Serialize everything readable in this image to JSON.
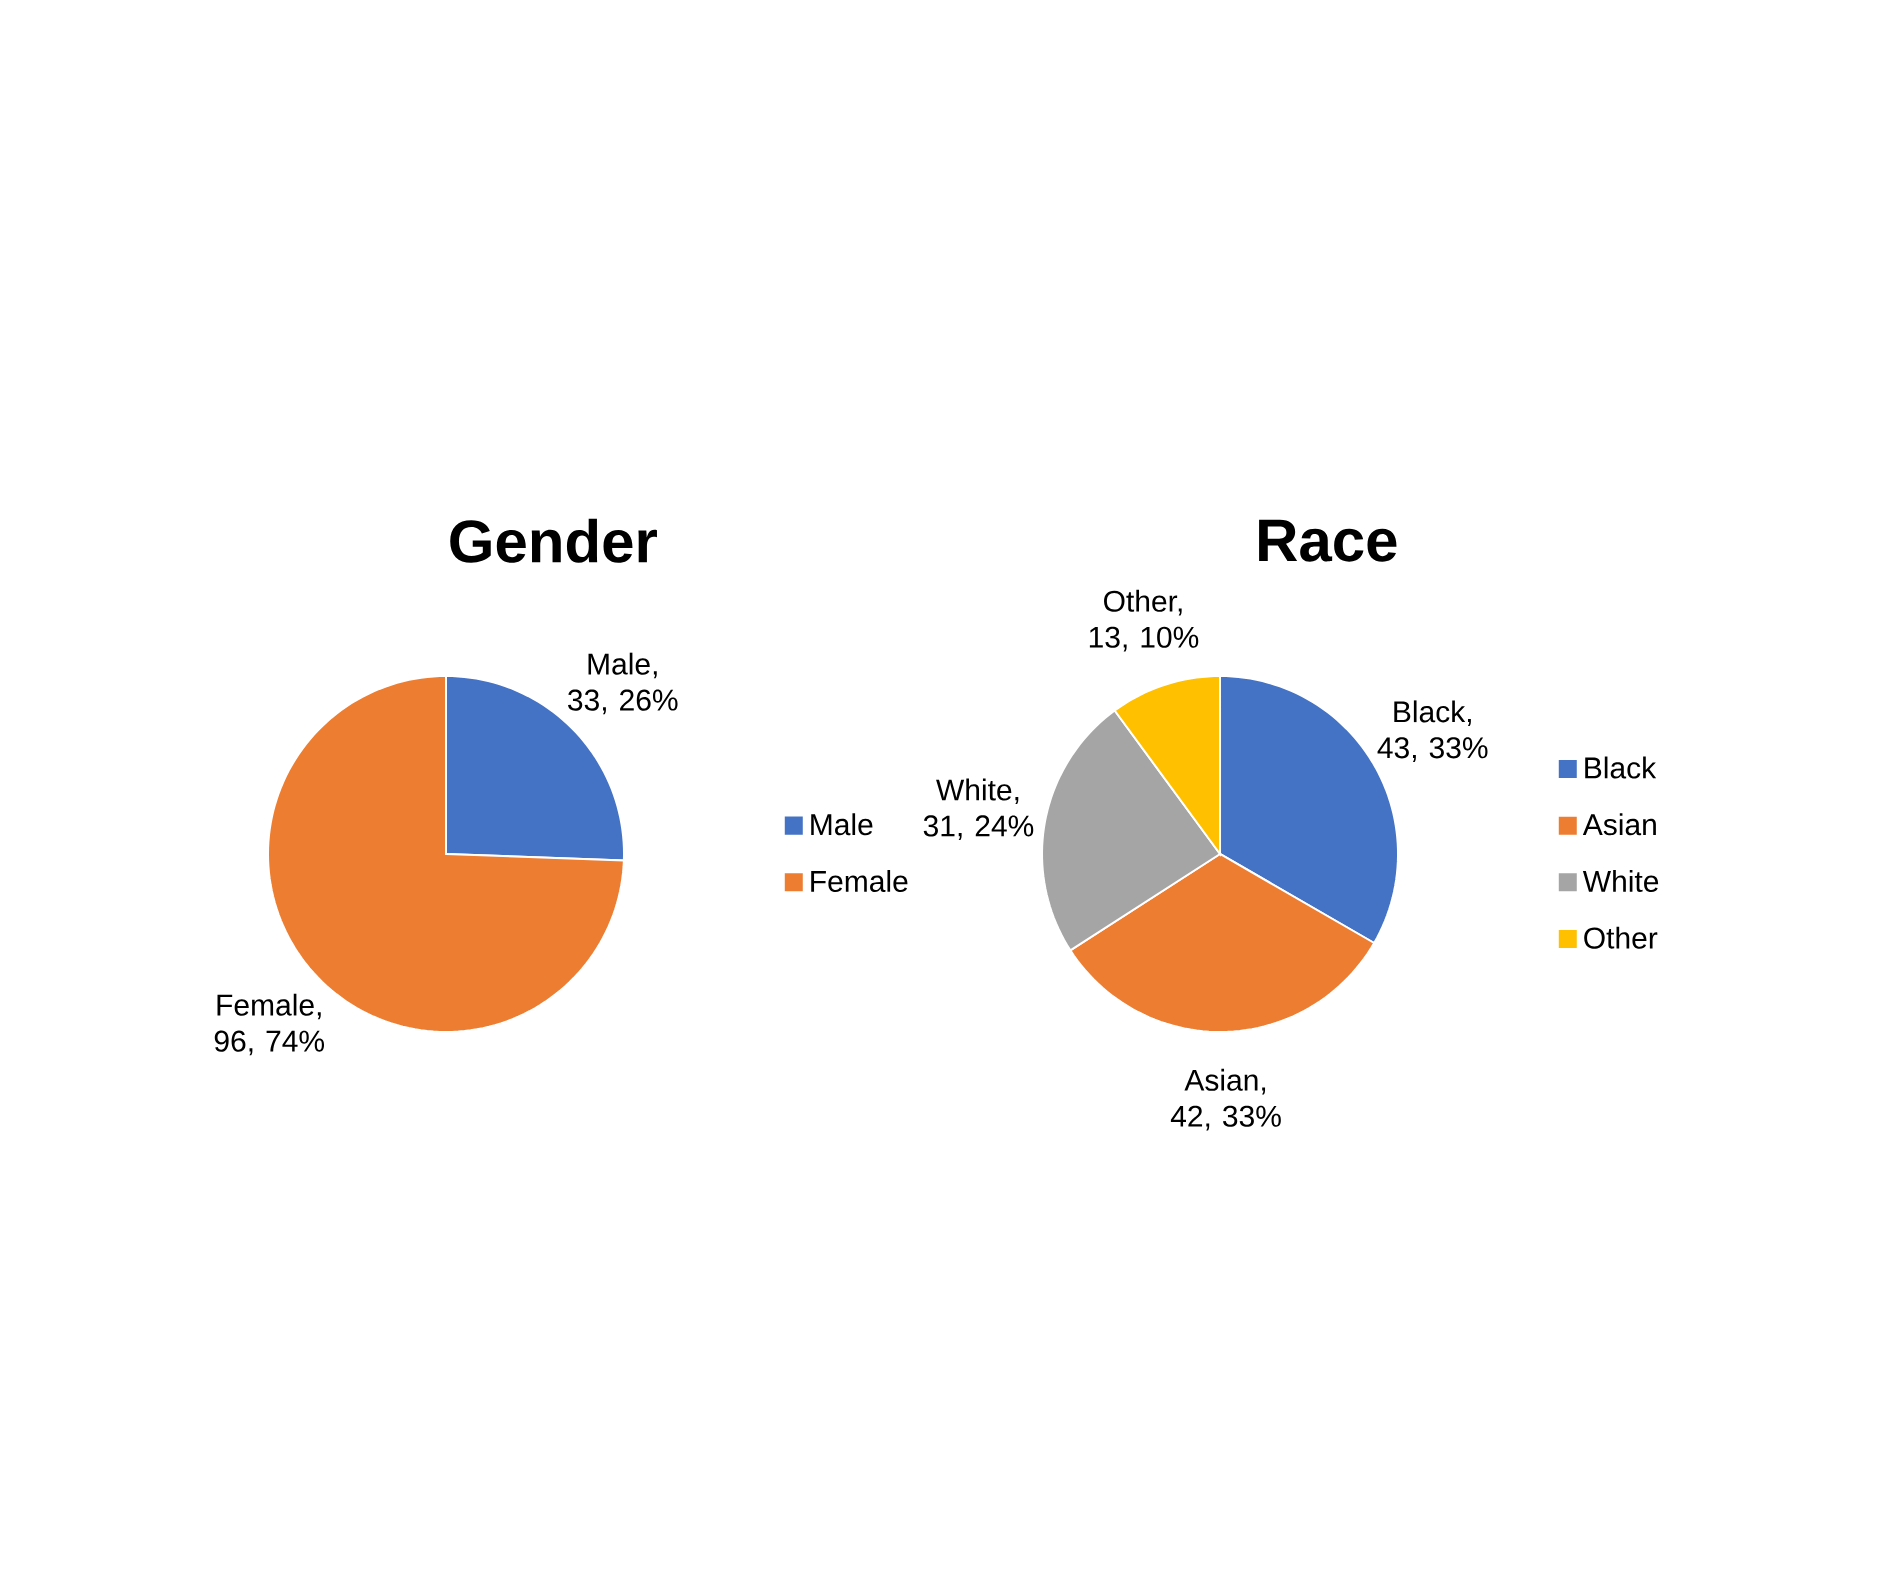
{
  "chart_data": [
    {
      "type": "pie",
      "title": "Gender",
      "categories": [
        "Male",
        "Female"
      ],
      "values": [
        33,
        96
      ],
      "colors": [
        "#4472c4",
        "#ed7d31"
      ],
      "value_labels": [
        "Male, 33, 26%",
        "Female, 96, 74%"
      ],
      "legend": "right"
    },
    {
      "type": "pie",
      "title": "Race",
      "categories": [
        "Black",
        "Asian",
        "White",
        "Other"
      ],
      "values": [
        43,
        42,
        31,
        13
      ],
      "colors": [
        "#4472c4",
        "#ed7d31",
        "#a5a5a5",
        "#ffc000"
      ],
      "value_labels": [
        "Black, 43, 33%",
        "Asian, 42, 33%",
        "White, 31, 24%",
        "Other, 13, 10%"
      ],
      "legend": "right"
    }
  ]
}
